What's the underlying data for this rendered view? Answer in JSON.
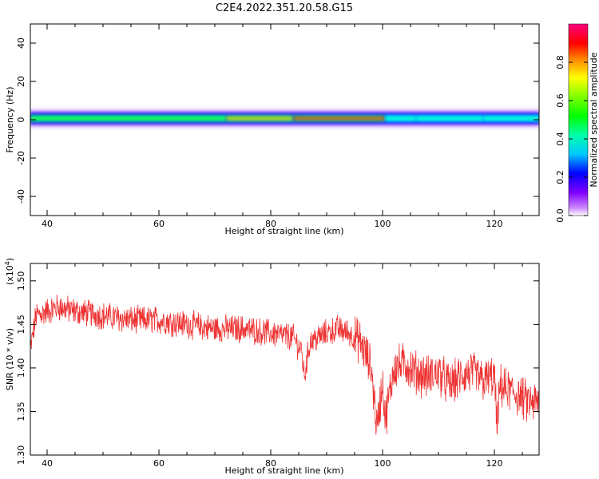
{
  "title": "C2E4.2022.351.20.58.G15",
  "chart_data": [
    {
      "type": "heatmap",
      "xlabel": "Height of straight line (km)",
      "ylabel": "Frequency (Hz)",
      "xlim": [
        37,
        128
      ],
      "ylim": [
        -50,
        50
      ],
      "xticks": [
        40,
        60,
        80,
        100,
        120
      ],
      "yticks": [
        -40,
        -20,
        0,
        20,
        40
      ],
      "colorbar": {
        "label": "Normalized spectral amplitude",
        "ticks": [
          "0.0",
          "0.2",
          "0.4",
          "0.6",
          "0.8"
        ],
        "range": [
          0,
          1
        ]
      },
      "band": {
        "center_hz": 0.7,
        "segments": [
          {
            "x0": 37,
            "x1": 72,
            "peak": 0.55
          },
          {
            "x0": 72,
            "x1": 84,
            "peak": 0.75
          },
          {
            "x0": 84,
            "x1": 100.5,
            "peak": 0.95
          },
          {
            "x0": 100.5,
            "x1": 106,
            "peak": 0.5
          },
          {
            "x0": 106,
            "x1": 118,
            "peak": 0.42
          },
          {
            "x0": 118,
            "x1": 128,
            "peak": 0.4
          }
        ]
      }
    },
    {
      "type": "line",
      "xlabel": "Height of straight line (km)",
      "ylabel": "SNR (10 * v/v)",
      "yscale_label": "(x10",
      "yscale_exp": "4",
      "yscale_close": ")",
      "xlim": [
        37,
        128
      ],
      "ylim": [
        1.3,
        1.52
      ],
      "xticks": [
        40,
        60,
        80,
        100,
        120
      ],
      "yticks": [
        "1.30",
        "1.35",
        "1.40",
        "1.45",
        "1.50"
      ],
      "series": [
        {
          "color": "#ee3333",
          "x": [
            37,
            38,
            40,
            42,
            45,
            50,
            55,
            60,
            65,
            70,
            75,
            80,
            84,
            85.5,
            86,
            86.5,
            87,
            90,
            92,
            94,
            96,
            98,
            99,
            100,
            100.5,
            101,
            102,
            104,
            106,
            108,
            110,
            112,
            114,
            116,
            118,
            120,
            120.5,
            121,
            122,
            124,
            126,
            128
          ],
          "y": [
            1.42,
            1.46,
            1.465,
            1.47,
            1.465,
            1.46,
            1.455,
            1.455,
            1.45,
            1.445,
            1.445,
            1.44,
            1.435,
            1.42,
            1.39,
            1.41,
            1.43,
            1.44,
            1.445,
            1.44,
            1.43,
            1.4,
            1.33,
            1.385,
            1.34,
            1.36,
            1.4,
            1.405,
            1.395,
            1.39,
            1.395,
            1.38,
            1.39,
            1.395,
            1.385,
            1.39,
            1.33,
            1.38,
            1.375,
            1.37,
            1.36,
            1.36
          ]
        }
      ]
    }
  ]
}
